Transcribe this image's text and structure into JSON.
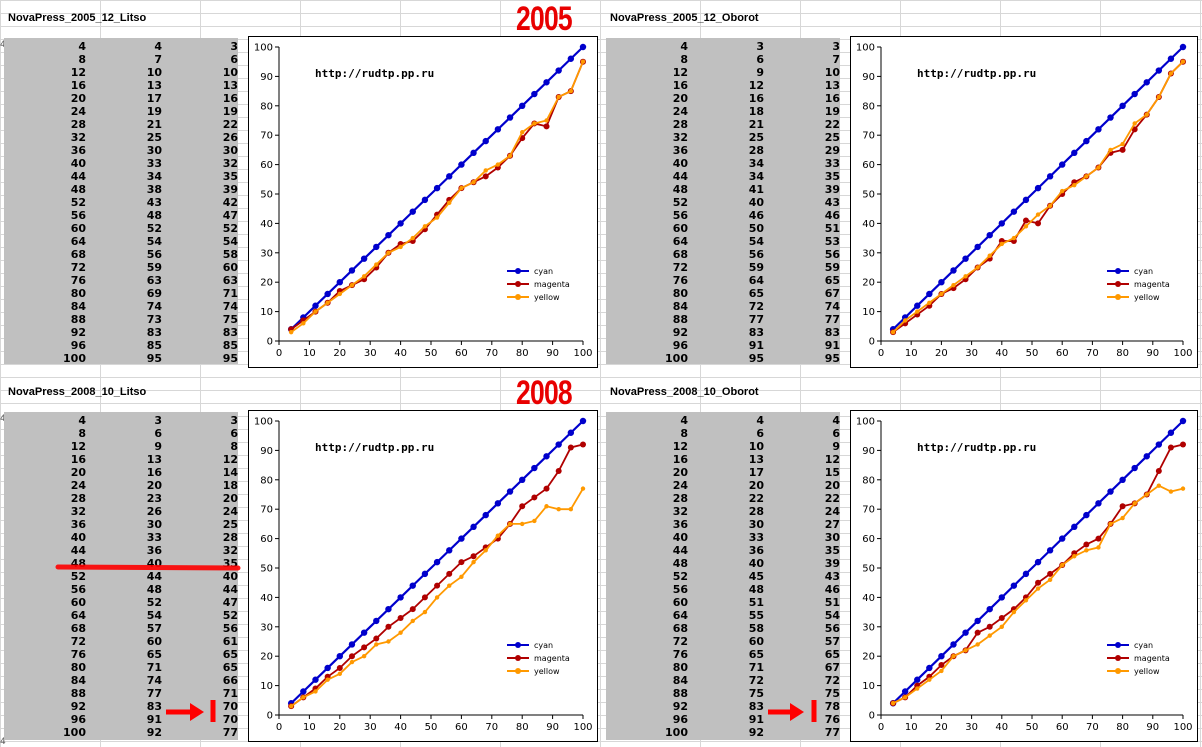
{
  "edge_marks": [
    "4",
    "4",
    "4"
  ],
  "panels": [
    {
      "title": "NovaPress_2005_12_Litso",
      "year": "2005",
      "rows": [
        [
          4,
          4,
          3
        ],
        [
          8,
          7,
          6
        ],
        [
          12,
          10,
          10
        ],
        [
          16,
          13,
          13
        ],
        [
          20,
          17,
          16
        ],
        [
          24,
          19,
          19
        ],
        [
          28,
          21,
          22
        ],
        [
          32,
          25,
          26
        ],
        [
          36,
          30,
          30
        ],
        [
          40,
          33,
          32
        ],
        [
          44,
          34,
          35
        ],
        [
          48,
          38,
          39
        ],
        [
          52,
          43,
          42
        ],
        [
          56,
          48,
          47
        ],
        [
          60,
          52,
          52
        ],
        [
          64,
          54,
          54
        ],
        [
          68,
          56,
          58
        ],
        [
          72,
          59,
          60
        ],
        [
          76,
          63,
          63
        ],
        [
          80,
          69,
          71
        ],
        [
          84,
          74,
          74
        ],
        [
          88,
          73,
          75
        ],
        [
          92,
          83,
          83
        ],
        [
          96,
          85,
          85
        ],
        [
          100,
          95,
          95
        ]
      ]
    },
    {
      "title": "NovaPress_2005_12_Oborot",
      "year": "",
      "rows": [
        [
          4,
          3,
          3
        ],
        [
          8,
          6,
          7
        ],
        [
          12,
          9,
          10
        ],
        [
          16,
          12,
          13
        ],
        [
          20,
          16,
          16
        ],
        [
          24,
          18,
          19
        ],
        [
          28,
          21,
          22
        ],
        [
          32,
          25,
          25
        ],
        [
          36,
          28,
          29
        ],
        [
          40,
          34,
          33
        ],
        [
          44,
          34,
          35
        ],
        [
          48,
          41,
          39
        ],
        [
          52,
          40,
          43
        ],
        [
          56,
          46,
          46
        ],
        [
          60,
          50,
          51
        ],
        [
          64,
          54,
          53
        ],
        [
          68,
          56,
          56
        ],
        [
          72,
          59,
          59
        ],
        [
          76,
          64,
          65
        ],
        [
          80,
          65,
          67
        ],
        [
          84,
          72,
          74
        ],
        [
          88,
          77,
          77
        ],
        [
          92,
          83,
          83
        ],
        [
          96,
          91,
          91
        ],
        [
          100,
          95,
          95
        ]
      ]
    },
    {
      "title": "NovaPress_2008_10_Litso",
      "year": "2008",
      "rows": [
        [
          4,
          3,
          3
        ],
        [
          8,
          6,
          6
        ],
        [
          12,
          9,
          8
        ],
        [
          16,
          13,
          12
        ],
        [
          20,
          16,
          14
        ],
        [
          24,
          20,
          18
        ],
        [
          28,
          23,
          20
        ],
        [
          32,
          26,
          24
        ],
        [
          36,
          30,
          25
        ],
        [
          40,
          33,
          28
        ],
        [
          44,
          36,
          32
        ],
        [
          48,
          40,
          35
        ],
        [
          52,
          44,
          40
        ],
        [
          56,
          48,
          44
        ],
        [
          60,
          52,
          47
        ],
        [
          64,
          54,
          52
        ],
        [
          68,
          57,
          56
        ],
        [
          72,
          60,
          61
        ],
        [
          76,
          65,
          65
        ],
        [
          80,
          71,
          65
        ],
        [
          84,
          74,
          66
        ],
        [
          88,
          77,
          71
        ],
        [
          92,
          83,
          70
        ],
        [
          96,
          91,
          70
        ],
        [
          100,
          92,
          77
        ]
      ]
    },
    {
      "title": "NovaPress_2008_10_Oborot",
      "year": "",
      "rows": [
        [
          4,
          4,
          4
        ],
        [
          8,
          6,
          6
        ],
        [
          12,
          10,
          9
        ],
        [
          16,
          13,
          12
        ],
        [
          20,
          17,
          15
        ],
        [
          24,
          20,
          20
        ],
        [
          28,
          22,
          22
        ],
        [
          32,
          28,
          24
        ],
        [
          36,
          30,
          27
        ],
        [
          40,
          33,
          30
        ],
        [
          44,
          36,
          35
        ],
        [
          48,
          40,
          39
        ],
        [
          52,
          45,
          43
        ],
        [
          56,
          48,
          46
        ],
        [
          60,
          51,
          51
        ],
        [
          64,
          55,
          54
        ],
        [
          68,
          58,
          56
        ],
        [
          72,
          60,
          57
        ],
        [
          76,
          65,
          65
        ],
        [
          80,
          71,
          67
        ],
        [
          84,
          72,
          72
        ],
        [
          88,
          75,
          75
        ],
        [
          92,
          83,
          78
        ],
        [
          96,
          91,
          76
        ],
        [
          100,
          92,
          77
        ]
      ]
    }
  ],
  "chart_data": [
    {
      "type": "line",
      "annotation": "http://rudtp.pp.ru",
      "x": [
        4,
        8,
        12,
        16,
        20,
        24,
        28,
        32,
        36,
        40,
        44,
        48,
        52,
        56,
        60,
        64,
        68,
        72,
        76,
        80,
        84,
        88,
        92,
        96,
        100
      ],
      "series": [
        {
          "name": "cyan",
          "color": "#0000cc",
          "values": [
            4,
            8,
            12,
            16,
            20,
            24,
            28,
            32,
            36,
            40,
            44,
            48,
            52,
            56,
            60,
            64,
            68,
            72,
            76,
            80,
            84,
            88,
            92,
            96,
            100
          ]
        },
        {
          "name": "magenta",
          "color": "#b00000",
          "values": [
            4,
            7,
            10,
            13,
            17,
            19,
            21,
            25,
            30,
            33,
            34,
            38,
            43,
            48,
            52,
            54,
            56,
            59,
            63,
            69,
            74,
            73,
            83,
            85,
            95
          ]
        },
        {
          "name": "yellow",
          "color": "#ff9900",
          "values": [
            3,
            6,
            10,
            13,
            16,
            19,
            22,
            26,
            30,
            32,
            35,
            39,
            42,
            47,
            52,
            54,
            58,
            60,
            63,
            71,
            74,
            75,
            83,
            85,
            95
          ]
        }
      ],
      "xlim": [
        0,
        100
      ],
      "ylim": [
        0,
        100
      ],
      "xticks": [
        0,
        10,
        20,
        30,
        40,
        50,
        60,
        70,
        80,
        90,
        100
      ],
      "yticks": [
        0,
        10,
        20,
        30,
        40,
        50,
        60,
        70,
        80,
        90,
        100
      ],
      "legend": "bottom-right",
      "grid": false
    },
    {
      "type": "line",
      "annotation": "http://rudtp.pp.ru",
      "x": [
        4,
        8,
        12,
        16,
        20,
        24,
        28,
        32,
        36,
        40,
        44,
        48,
        52,
        56,
        60,
        64,
        68,
        72,
        76,
        80,
        84,
        88,
        92,
        96,
        100
      ],
      "series": [
        {
          "name": "cyan",
          "color": "#0000cc",
          "values": [
            4,
            8,
            12,
            16,
            20,
            24,
            28,
            32,
            36,
            40,
            44,
            48,
            52,
            56,
            60,
            64,
            68,
            72,
            76,
            80,
            84,
            88,
            92,
            96,
            100
          ]
        },
        {
          "name": "magenta",
          "color": "#b00000",
          "values": [
            3,
            6,
            9,
            12,
            16,
            18,
            21,
            25,
            28,
            34,
            34,
            41,
            40,
            46,
            50,
            54,
            56,
            59,
            64,
            65,
            72,
            77,
            83,
            91,
            95
          ]
        },
        {
          "name": "yellow",
          "color": "#ff9900",
          "values": [
            3,
            7,
            10,
            13,
            16,
            19,
            22,
            25,
            29,
            33,
            35,
            39,
            43,
            46,
            51,
            53,
            56,
            59,
            65,
            67,
            74,
            77,
            83,
            91,
            95
          ]
        }
      ],
      "xlim": [
        0,
        100
      ],
      "ylim": [
        0,
        100
      ],
      "xticks": [
        0,
        10,
        20,
        30,
        40,
        50,
        60,
        70,
        80,
        90,
        100
      ],
      "yticks": [
        0,
        10,
        20,
        30,
        40,
        50,
        60,
        70,
        80,
        90,
        100
      ],
      "legend": "bottom-right",
      "grid": false
    },
    {
      "type": "line",
      "annotation": "http://rudtp.pp.ru",
      "x": [
        4,
        8,
        12,
        16,
        20,
        24,
        28,
        32,
        36,
        40,
        44,
        48,
        52,
        56,
        60,
        64,
        68,
        72,
        76,
        80,
        84,
        88,
        92,
        96,
        100
      ],
      "series": [
        {
          "name": "cyan",
          "color": "#0000cc",
          "values": [
            4,
            8,
            12,
            16,
            20,
            24,
            28,
            32,
            36,
            40,
            44,
            48,
            52,
            56,
            60,
            64,
            68,
            72,
            76,
            80,
            84,
            88,
            92,
            96,
            100
          ]
        },
        {
          "name": "magenta",
          "color": "#b00000",
          "values": [
            3,
            6,
            9,
            13,
            16,
            20,
            23,
            26,
            30,
            33,
            36,
            40,
            44,
            48,
            52,
            54,
            57,
            60,
            65,
            71,
            74,
            77,
            83,
            91,
            92
          ]
        },
        {
          "name": "yellow",
          "color": "#ff9900",
          "values": [
            3,
            6,
            8,
            12,
            14,
            18,
            20,
            24,
            25,
            28,
            32,
            35,
            40,
            44,
            47,
            52,
            56,
            61,
            65,
            65,
            66,
            71,
            70,
            70,
            77
          ]
        }
      ],
      "xlim": [
        0,
        100
      ],
      "ylim": [
        0,
        100
      ],
      "xticks": [
        0,
        10,
        20,
        30,
        40,
        50,
        60,
        70,
        80,
        90,
        100
      ],
      "yticks": [
        0,
        10,
        20,
        30,
        40,
        50,
        60,
        70,
        80,
        90,
        100
      ],
      "legend": "bottom-right",
      "grid": false
    },
    {
      "type": "line",
      "annotation": "http://rudtp.pp.ru",
      "x": [
        4,
        8,
        12,
        16,
        20,
        24,
        28,
        32,
        36,
        40,
        44,
        48,
        52,
        56,
        60,
        64,
        68,
        72,
        76,
        80,
        84,
        88,
        92,
        96,
        100
      ],
      "series": [
        {
          "name": "cyan",
          "color": "#0000cc",
          "values": [
            4,
            8,
            12,
            16,
            20,
            24,
            28,
            32,
            36,
            40,
            44,
            48,
            52,
            56,
            60,
            64,
            68,
            72,
            76,
            80,
            84,
            88,
            92,
            96,
            100
          ]
        },
        {
          "name": "magenta",
          "color": "#b00000",
          "values": [
            4,
            6,
            10,
            13,
            17,
            20,
            22,
            28,
            30,
            33,
            36,
            40,
            45,
            48,
            51,
            55,
            58,
            60,
            65,
            71,
            72,
            75,
            83,
            91,
            92
          ]
        },
        {
          "name": "yellow",
          "color": "#ff9900",
          "values": [
            4,
            6,
            9,
            12,
            15,
            20,
            22,
            24,
            27,
            30,
            35,
            39,
            43,
            46,
            51,
            54,
            56,
            57,
            65,
            67,
            72,
            75,
            78,
            76,
            77
          ]
        }
      ],
      "xlim": [
        0,
        100
      ],
      "ylim": [
        0,
        100
      ],
      "xticks": [
        0,
        10,
        20,
        30,
        40,
        50,
        60,
        70,
        80,
        90,
        100
      ],
      "yticks": [
        0,
        10,
        20,
        30,
        40,
        50,
        60,
        70,
        80,
        90,
        100
      ],
      "legend": "bottom-right",
      "grid": false
    }
  ]
}
